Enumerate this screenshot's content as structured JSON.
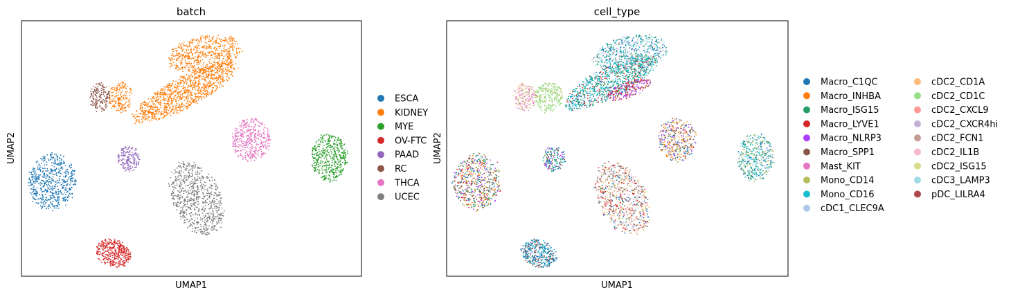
{
  "chart_data": [
    {
      "type": "scatter",
      "title": "batch",
      "xlabel": "UMAP1",
      "ylabel": "UMAP2",
      "xlim": [
        0,
        100
      ],
      "ylim": [
        0,
        100
      ],
      "grid": false,
      "ticks": false,
      "legend_position": "right",
      "legend": [
        {
          "name": "ESCA",
          "color": "#1f77b4"
        },
        {
          "name": "KIDNEY",
          "color": "#ff7f0e"
        },
        {
          "name": "MYE",
          "color": "#2ca02c"
        },
        {
          "name": "OV-FTC",
          "color": "#d62728"
        },
        {
          "name": "PAAD",
          "color": "#9467bd"
        },
        {
          "name": "RC",
          "color": "#8c564b"
        },
        {
          "name": "THCA",
          "color": "#e377c2"
        },
        {
          "name": "UCEC",
          "color": "#7f7f7f"
        }
      ],
      "clusters": [
        {
          "category": "KIDNEY",
          "cx": 48,
          "cy": 72,
          "rx": 17,
          "ry": 6,
          "angle": 28,
          "n": 1100,
          "mix": [
            "#ff7f0e"
          ]
        },
        {
          "category": "KIDNEY",
          "cx": 54,
          "cy": 87,
          "rx": 11,
          "ry": 7,
          "angle": 10,
          "n": 600,
          "mix": [
            "#ff7f0e"
          ]
        },
        {
          "category": "KIDNEY",
          "cx": 29,
          "cy": 70,
          "rx": 3.5,
          "ry": 6,
          "angle": 0,
          "n": 180,
          "mix": [
            "#ff7f0e"
          ]
        },
        {
          "category": "RC",
          "cx": 23,
          "cy": 70,
          "rx": 3,
          "ry": 5.5,
          "angle": 0,
          "n": 160,
          "mix": [
            "#8c564b"
          ]
        },
        {
          "category": "THCA",
          "cx": 67.5,
          "cy": 53.5,
          "rx": 5.5,
          "ry": 8.5,
          "angle": 0,
          "n": 420,
          "mix": [
            "#e377c2"
          ]
        },
        {
          "category": "MYE",
          "cx": 90.5,
          "cy": 46.5,
          "rx": 5.3,
          "ry": 9.3,
          "angle": 0,
          "n": 450,
          "mix": [
            "#2ca02c"
          ]
        },
        {
          "category": "PAAD",
          "cx": 31.5,
          "cy": 46,
          "rx": 3.2,
          "ry": 5,
          "angle": 0,
          "n": 170,
          "mix": [
            "#9467bd"
          ]
        },
        {
          "category": "ESCA",
          "cx": 9,
          "cy": 37,
          "rx": 7,
          "ry": 11,
          "angle": -12,
          "n": 600,
          "mix": [
            "#1f77b4"
          ]
        },
        {
          "category": "UCEC",
          "cx": 51.5,
          "cy": 30.5,
          "rx": 7,
          "ry": 15,
          "angle": 25,
          "n": 750,
          "mix": [
            "#7f7f7f"
          ]
        },
        {
          "category": "OV-FTC",
          "cx": 27,
          "cy": 9,
          "rx": 4,
          "ry": 7,
          "angle": 68,
          "n": 380,
          "mix": [
            "#d62728"
          ]
        }
      ]
    },
    {
      "type": "scatter",
      "title": "cell_type",
      "xlabel": "UMAP1",
      "ylabel": "UMAP2",
      "xlim": [
        0,
        100
      ],
      "ylim": [
        0,
        100
      ],
      "grid": false,
      "ticks": false,
      "legend_position": "right",
      "legend_columns": 2,
      "legend": [
        {
          "name": "Macro_C1QC",
          "color": "#1f77b4"
        },
        {
          "name": "Macro_INHBA",
          "color": "#ff7f0e"
        },
        {
          "name": "Macro_ISG15",
          "color": "#279e68"
        },
        {
          "name": "Macro_LYVE1",
          "color": "#d62728"
        },
        {
          "name": "Macro_NLRP3",
          "color": "#aa40fc"
        },
        {
          "name": "Macro_SPP1",
          "color": "#8c564b"
        },
        {
          "name": "Mast_KIT",
          "color": "#e377c2"
        },
        {
          "name": "Mono_CD14",
          "color": "#b5bd61"
        },
        {
          "name": "Mono_CD16",
          "color": "#17becf"
        },
        {
          "name": "cDC1_CLEC9A",
          "color": "#aec7e8"
        },
        {
          "name": "cDC2_CD1A",
          "color": "#ffbb78"
        },
        {
          "name": "cDC2_CD1C",
          "color": "#98df8a"
        },
        {
          "name": "cDC2_CXCL9",
          "color": "#ff9896"
        },
        {
          "name": "cDC2_CXCR4hi",
          "color": "#c5b0d5"
        },
        {
          "name": "cDC2_FCN1",
          "color": "#c49c94"
        },
        {
          "name": "cDC2_IL1B",
          "color": "#f7b6d2"
        },
        {
          "name": "cDC2_ISG15",
          "color": "#dbdb8d"
        },
        {
          "name": "cDC3_LAMP3",
          "color": "#9edae5"
        },
        {
          "name": "pDC_LILRA4",
          "color": "#ad494a"
        }
      ],
      "clusters": [
        {
          "category": "mixed",
          "cx": 48,
          "cy": 76,
          "rx": 15,
          "ry": 6,
          "angle": 28,
          "n": 1000,
          "mix": [
            "#279e68",
            "#17becf",
            "#9edae5",
            "#279e68",
            "#17becf",
            "#d62728",
            "#1f77b4"
          ]
        },
        {
          "category": "mixed",
          "cx": 54,
          "cy": 87,
          "rx": 11,
          "ry": 7,
          "angle": 10,
          "n": 600,
          "mix": [
            "#279e68",
            "#17becf",
            "#9edae5",
            "#1f77b4",
            "#c5b0d5"
          ]
        },
        {
          "category": "mixed",
          "cx": 53,
          "cy": 73,
          "rx": 7,
          "ry": 3,
          "angle": 20,
          "n": 220,
          "mix": [
            "#d62728",
            "#aa40fc",
            "#ad494a"
          ]
        },
        {
          "category": "cDC2_CD1C",
          "cx": 30,
          "cy": 70,
          "rx": 4,
          "ry": 6,
          "angle": 0,
          "n": 260,
          "mix": [
            "#98df8a",
            "#98df8a",
            "#98df8a",
            "#b5bd61"
          ]
        },
        {
          "category": "cDC2",
          "cx": 23,
          "cy": 70,
          "rx": 3.5,
          "ry": 5.5,
          "angle": 0,
          "n": 200,
          "mix": [
            "#c49c94",
            "#f7b6d2",
            "#dbdb8d",
            "#e377c2"
          ]
        },
        {
          "category": "mixed",
          "cx": 67.5,
          "cy": 53.5,
          "rx": 5.5,
          "ry": 8.5,
          "angle": 0,
          "n": 420,
          "mix": [
            "#ff7f0e",
            "#ffbb78",
            "#b5bd61",
            "#aa40fc",
            "#1f77b4",
            "#8c564b"
          ]
        },
        {
          "category": "mixed",
          "cx": 90.5,
          "cy": 46.5,
          "rx": 5.3,
          "ry": 9.3,
          "angle": 0,
          "n": 450,
          "mix": [
            "#17becf",
            "#1f77b4",
            "#b5bd61",
            "#9edae5",
            "#279e68"
          ]
        },
        {
          "category": "mixed",
          "cx": 31.5,
          "cy": 46,
          "rx": 3.2,
          "ry": 5,
          "angle": 0,
          "n": 170,
          "mix": [
            "#1f77b4",
            "#17becf",
            "#8c564b",
            "#aa40fc",
            "#279e68"
          ]
        },
        {
          "category": "mixed",
          "cx": 9,
          "cy": 37,
          "rx": 7,
          "ry": 11,
          "angle": -12,
          "n": 600,
          "mix": [
            "#d62728",
            "#ff7f0e",
            "#279e68",
            "#aa40fc",
            "#8c564b",
            "#1f77b4",
            "#b5bd61"
          ]
        },
        {
          "category": "mixed",
          "cx": 51.5,
          "cy": 30.5,
          "rx": 7,
          "ry": 15,
          "angle": 25,
          "n": 750,
          "mix": [
            "#b5bd61",
            "#c5b0d5",
            "#8c564b",
            "#d62728",
            "#ff9896",
            "#ffbb78",
            "#1f77b4"
          ]
        },
        {
          "category": "mixed",
          "cx": 27,
          "cy": 9,
          "rx": 4,
          "ry": 7,
          "angle": 68,
          "n": 380,
          "mix": [
            "#1f77b4",
            "#8c564b",
            "#17becf",
            "#1f77b4"
          ]
        }
      ]
    }
  ]
}
